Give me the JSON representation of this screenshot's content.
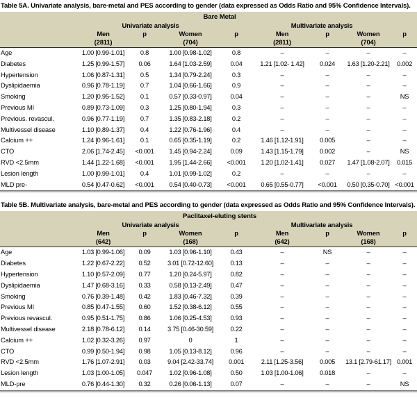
{
  "colors": {
    "band_beige": "#d6d3b9",
    "header_rule": "#2b2b2b",
    "bottom_rule_dark": "#757575",
    "bottom_rule_light": "#b3b3b3",
    "text": "#000000",
    "background": "#ffffff"
  },
  "tables": [
    {
      "title": "Table 5A. Univariate analysis, bare-metal and PES according to gender (data expressed as Odds Ratio and 95% Confidence Intervals).",
      "group_header": "Bare Metal",
      "analysis_headers": {
        "univariate": "Univariate analysis",
        "multivariate": "Multivariate analysis"
      },
      "columns": [
        {
          "label": "Men",
          "sub": "(2811)"
        },
        {
          "label": "p"
        },
        {
          "label": "Women",
          "sub": "(704)"
        },
        {
          "label": "p"
        },
        {
          "label": "Men",
          "sub": "(2811)"
        },
        {
          "label": "p"
        },
        {
          "label": "Women",
          "sub": "(704)"
        },
        {
          "label": "p"
        }
      ],
      "rows": [
        {
          "label": "Age",
          "values": [
            "1.00 [0.99-1.01]",
            "0.8",
            "1.00 [0.98-1.02]",
            "0.8",
            "–",
            "–",
            "–",
            "–"
          ]
        },
        {
          "label": "Diabetes",
          "values": [
            "1.25 [0.99-1.57]",
            "0.06",
            "1.64 [1.03-2.59]",
            "0.04",
            "1.21 [1.02- 1.42]",
            "0.024",
            "1.63 [1.20-2.21]",
            "0.002"
          ]
        },
        {
          "label": "Hypertension",
          "values": [
            "1.06 [0.87-1.31]",
            "0.5",
            "1.34 [0.79-2.24]",
            "0.3",
            "–",
            "–",
            "–",
            "–"
          ]
        },
        {
          "label": "Dyslipidaemia",
          "values": [
            "0.96 [0.78-1.19]",
            "0.7",
            "1.04 [0.66-1.66]",
            "0.9",
            "–",
            "–",
            "–",
            "–"
          ]
        },
        {
          "label": "Smoking",
          "values": [
            "1.20 [0.95-1.52]",
            "0.1",
            "0.57 [0.33-0.97]",
            "0.04",
            "–",
            "–",
            "–",
            "NS"
          ]
        },
        {
          "label": "Previous MI",
          "values": [
            "0.89 [0.73-1.09]",
            "0.3",
            "1.25 [0.80-1.94]",
            "0.3",
            "–",
            "–",
            "–",
            "–"
          ]
        },
        {
          "label": "Previous. revascul.",
          "values": [
            "0.96 [0.77-1.19]",
            "0.7",
            "1.35 [0.83-2.18]",
            "0.2",
            "–",
            "–",
            "–",
            "–"
          ]
        },
        {
          "label": "Multivessel disease",
          "values": [
            "1.10 [0.89-1.37]",
            "0.4",
            "1.22 [0.76-1.96]",
            "0.4",
            "–",
            "–",
            "–",
            "–"
          ]
        },
        {
          "label": "Calcium ++",
          "values": [
            "1.24 [0.96-1.61]",
            "0.1",
            "0.65 [0.35-1.19]",
            "0.2",
            "1.46 [1.12-1.91]",
            "0.005",
            "–",
            "–"
          ]
        },
        {
          "label": "CTO",
          "values": [
            "2.06 [1.74-2.45]",
            "<0.001",
            "1.45 [0.94-2.24]",
            "0.09",
            "1.43 [1.15-1.79]",
            "0.002",
            "–",
            "NS"
          ]
        },
        {
          "label": "RVD <2.5mm",
          "values": [
            "1.44 [1.22-1.68]",
            "<0.001",
            "1.95 [1.44-2.66]",
            "<0.001",
            "1.20 [1.02-1.41]",
            "0.027",
            "1.47 [1.08-2.07]",
            "0.015"
          ]
        },
        {
          "label": "Lesion length",
          "values": [
            "1.00 [0.99-1.01]",
            "0.4",
            "1.01 [0.99-1.02]",
            "0.2",
            "–",
            "–",
            "–",
            "–"
          ]
        },
        {
          "label": "MLD pre-",
          "values": [
            "0.54 [0.47-0.62]",
            "<0.001",
            "0.54 [0.40-0.73]",
            "<0.001",
            "0.65 [0.55-0.77]",
            "<0.001",
            "0.50 [0.35-0.70]",
            "<0.001"
          ]
        }
      ]
    },
    {
      "title": "Table 5B. Multivariate analysis, bare-metal and PES according to gender (data expressed as Odds Ratio and 95% Confidence Intervals).",
      "group_header": "Paclitaxel-eluting stents",
      "analysis_headers": {
        "univariate": "Univariate analysis",
        "multivariate": "Multivariate analysis"
      },
      "columns": [
        {
          "label": "Men",
          "sub": "(642)"
        },
        {
          "label": "p"
        },
        {
          "label": "Women",
          "sub": "(168)"
        },
        {
          "label": "p"
        },
        {
          "label": "Men",
          "sub": "(642)"
        },
        {
          "label": "p"
        },
        {
          "label": "Women",
          "sub": "(168)"
        },
        {
          "label": "p"
        }
      ],
      "rows": [
        {
          "label": "Age",
          "values": [
            "1.03 [0.99-1.06]",
            "0.09",
            "1.03 [0.96-1.10]",
            "0.43",
            "–",
            "NS",
            "–",
            "–"
          ]
        },
        {
          "label": "Diabetes",
          "values": [
            "1.22 [0.67-2.22]",
            "0.52",
            "3.01 [0.72-12.60]",
            "0.13",
            "–",
            "–",
            "–",
            "–"
          ]
        },
        {
          "label": "Hypertension",
          "values": [
            "1.10 [0.57-2.09]",
            "0.77",
            "1.20 [0.24-5.97]",
            "0.82",
            "–",
            "–",
            "–",
            "–"
          ]
        },
        {
          "label": "Dyslipidaemia",
          "values": [
            "1.47 [0.68-3.16]",
            "0.33",
            "0.58 [0.13-2.49]",
            "0.47",
            "–",
            "–",
            "–",
            "–"
          ]
        },
        {
          "label": "Smoking",
          "values": [
            "0.76 [0.39-1.48]",
            "0.42",
            "1.83 [0.46-7.32]",
            "0.39",
            "–",
            "–",
            "–",
            "–"
          ]
        },
        {
          "label": "Previous MI",
          "values": [
            "0.85 [0.47-1.55]",
            "0.60",
            "1.52 [0.38-6.12]",
            "0.55",
            "–",
            "–",
            "–",
            "–"
          ]
        },
        {
          "label": "Previous revascul.",
          "values": [
            "0.95 [0.51-1.75]",
            "0.86",
            "1.06 [0.25-4.53]",
            "0.93",
            "–",
            "–",
            "–",
            "–"
          ]
        },
        {
          "label": "Multivessel disease",
          "values": [
            "2.18 [0.78-6.12]",
            "0.14",
            "3.75 [0.46-30.59]",
            "0.22",
            "–",
            "–",
            "–",
            "–"
          ]
        },
        {
          "label": "Calcium ++",
          "values": [
            "1.02 [0.32-3.26]",
            "0.97",
            "0",
            "1",
            "–",
            "–",
            "–",
            "–"
          ]
        },
        {
          "label": "CTO",
          "values": [
            "0.99 [0.50-1.94]",
            "0.98",
            "1.05 [0.13-8.12]",
            "0.96",
            "–",
            "–",
            "–",
            "–"
          ]
        },
        {
          "label": "RVD <2.5mm",
          "values": [
            "1.76 [1.07-2.91]",
            "0.03",
            "9.04 [2.42-33.74]",
            "0.001",
            "2.11 [1.25-3.56]",
            "0.005",
            "13.1 [2.79-61.17]",
            "0.001"
          ]
        },
        {
          "label": "Lesion length",
          "values": [
            "1.03 [1.00-1.05]",
            "0.047",
            "1.02 [0.96-1.08]",
            "0.50",
            "1.03 [1.00-1.06]",
            "0.018",
            "–",
            "–"
          ]
        },
        {
          "label": "MLD-pre",
          "values": [
            "0.76 [0.44-1.30]",
            "0.32",
            "0.26 [0.06-1.13]",
            "0.07",
            "–",
            "–",
            "–",
            "NS"
          ]
        }
      ]
    }
  ]
}
